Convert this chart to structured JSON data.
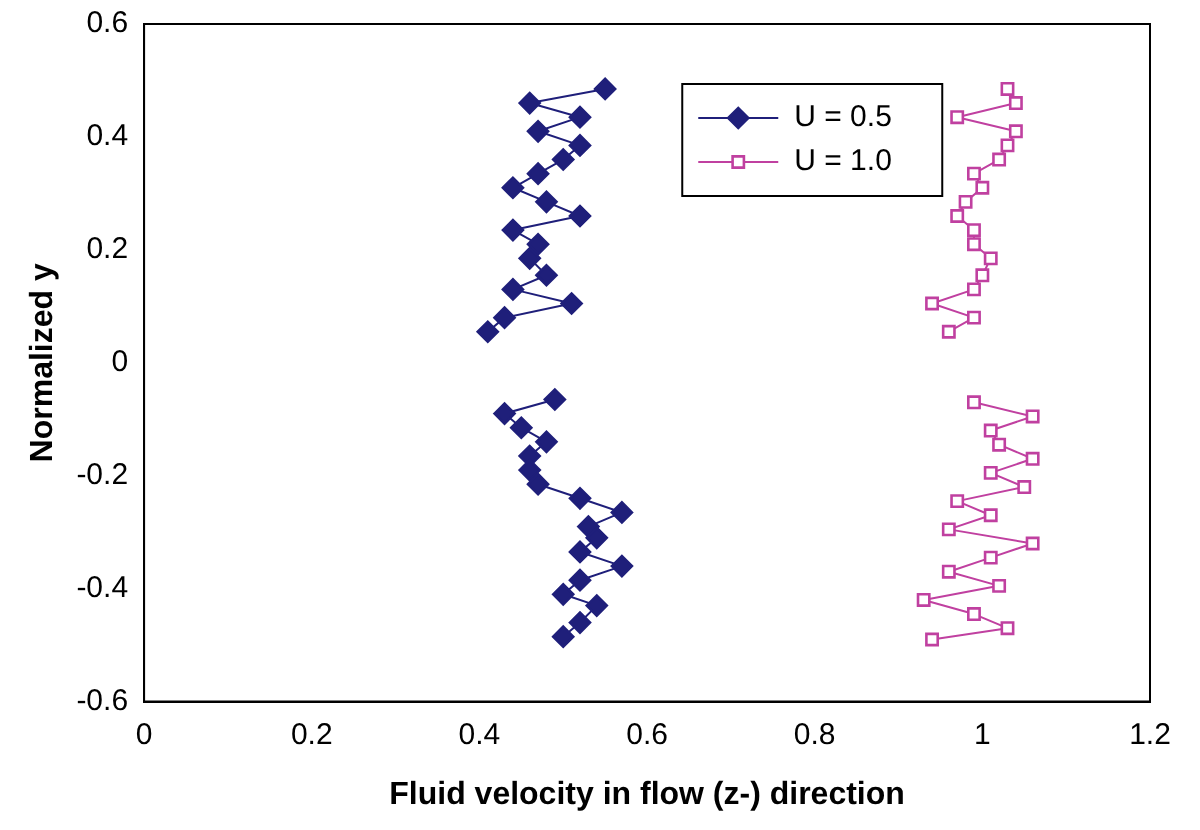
{
  "chart_data": {
    "type": "line",
    "xlabel": "Fluid velocity in flow (z-) direction",
    "ylabel": "Normalized y",
    "xlim": [
      0,
      1.2
    ],
    "xticks": [
      0,
      0.2,
      0.4,
      0.6,
      0.8,
      1,
      1.2
    ],
    "ylim": [
      -0.6,
      0.6
    ],
    "yticks": [
      -0.6,
      -0.4,
      -0.2,
      0,
      0.2,
      0.4,
      0.6
    ],
    "grid": false,
    "legend": "top",
    "line_style": "solid",
    "series": [
      {
        "name": "U = 0.5",
        "color": "#1f1f7a",
        "marker": "diamond",
        "x": [
          0.55,
          0.46,
          0.52,
          0.47,
          0.52,
          0.5,
          0.47,
          0.44,
          0.48,
          0.52,
          0.44,
          0.47,
          0.46,
          0.48,
          0.44,
          0.51,
          0.43,
          0.41,
          null,
          0.49,
          0.43,
          0.45,
          0.48,
          0.46,
          0.46,
          0.47,
          0.52,
          0.57,
          0.53,
          0.54,
          0.52,
          0.57,
          0.52,
          0.5,
          0.54,
          0.52,
          0.5
        ],
        "values": [
          0.485,
          0.46,
          0.435,
          0.41,
          0.385,
          0.36,
          0.335,
          0.31,
          0.285,
          0.26,
          0.235,
          0.21,
          0.185,
          0.155,
          0.13,
          0.105,
          0.08,
          0.055,
          null,
          -0.065,
          -0.09,
          -0.115,
          -0.14,
          -0.165,
          -0.19,
          -0.215,
          -0.24,
          -0.265,
          -0.29,
          -0.31,
          -0.335,
          -0.36,
          -0.385,
          -0.41,
          -0.43,
          -0.46,
          -0.485
        ]
      },
      {
        "name": "U = 1.0",
        "color": "#c040a0",
        "marker": "square",
        "x": [
          1.03,
          1.04,
          0.97,
          1.04,
          1.03,
          1.02,
          0.99,
          1,
          0.98,
          0.97,
          0.99,
          0.99,
          1.01,
          1,
          0.99,
          0.94,
          0.99,
          0.96,
          null,
          0.99,
          1.06,
          1.01,
          1.02,
          1.06,
          1.01,
          1.05,
          0.97,
          1.01,
          0.96,
          1.06,
          1.01,
          0.96,
          1.02,
          0.93,
          0.99,
          1.03,
          0.94
        ],
        "values": [
          0.485,
          0.46,
          0.435,
          0.41,
          0.385,
          0.36,
          0.335,
          0.31,
          0.285,
          0.26,
          0.235,
          0.21,
          0.185,
          0.155,
          0.13,
          0.105,
          0.08,
          0.055,
          null,
          -0.07,
          -0.095,
          -0.12,
          -0.145,
          -0.17,
          -0.195,
          -0.22,
          -0.245,
          -0.27,
          -0.295,
          -0.32,
          -0.345,
          -0.37,
          -0.395,
          -0.42,
          -0.445,
          -0.47,
          -0.49
        ]
      }
    ]
  }
}
